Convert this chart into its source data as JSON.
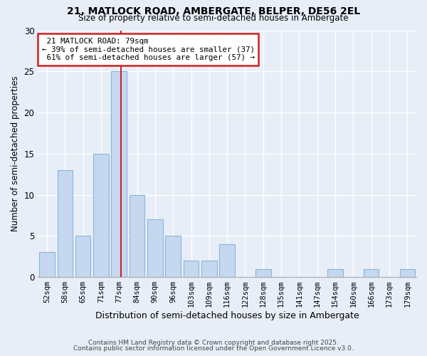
{
  "title1": "21, MATLOCK ROAD, AMBERGATE, BELPER, DE56 2EL",
  "title2": "Size of property relative to semi-detached houses in Ambergate",
  "xlabel": "Distribution of semi-detached houses by size in Ambergate",
  "ylabel": "Number of semi-detached properties",
  "categories": [
    "52sqm",
    "58sqm",
    "65sqm",
    "71sqm",
    "77sqm",
    "84sqm",
    "90sqm",
    "96sqm",
    "103sqm",
    "109sqm",
    "116sqm",
    "122sqm",
    "128sqm",
    "135sqm",
    "141sqm",
    "147sqm",
    "154sqm",
    "160sqm",
    "166sqm",
    "173sqm",
    "179sqm"
  ],
  "values": [
    3,
    13,
    5,
    15,
    25,
    10,
    7,
    5,
    2,
    2,
    4,
    0,
    1,
    0,
    0,
    0,
    1,
    0,
    1,
    0,
    1
  ],
  "bar_color": "#c5d8f0",
  "bar_edge_color": "#8ab4d8",
  "property_index": 4,
  "property_label": "21 MATLOCK ROAD: 79sqm",
  "pct_smaller": 39,
  "count_smaller": 37,
  "pct_larger": 61,
  "count_larger": 57,
  "marker_color": "#cc2222",
  "ylim": [
    0,
    30
  ],
  "yticks": [
    0,
    5,
    10,
    15,
    20,
    25,
    30
  ],
  "background_color": "#e8eef8",
  "grid_color": "#ffffff",
  "footer1": "Contains HM Land Registry data © Crown copyright and database right 2025.",
  "footer2": "Contains public sector information licensed under the Open Government Licence v3.0.",
  "annotation_box_color": "#ffffff",
  "annotation_box_edge": "#cc2222"
}
